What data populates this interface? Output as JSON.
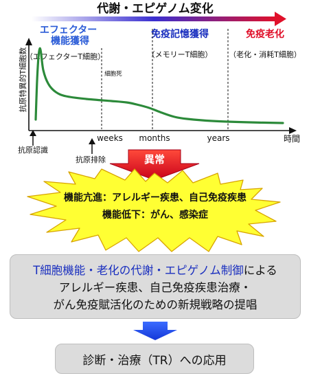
{
  "header": {
    "title": "代謝・エピゲノム変化",
    "colors": {
      "gradient_start": "#ffffff",
      "gradient_mid": "#3a2fd0",
      "gradient_end": "#e0102a"
    }
  },
  "phases": [
    {
      "title_lines": [
        "エフェクター",
        "機能獲得"
      ],
      "sublabel": "（エフェクターT細胞）",
      "color": "#2a5bd7"
    },
    {
      "title_lines": [
        "免疫記憶獲得"
      ],
      "sublabel": "（メモリーT細胞）",
      "color": "#1a2fbf"
    },
    {
      "title_lines": [
        "免疫老化"
      ],
      "sublabel": "（老化・消耗T細胞）",
      "color": "#e0102a"
    }
  ],
  "cell_death_label": "細胞死",
  "y_axis_label": "抗原特異的T細胞数",
  "x_axis": {
    "ticks": [
      "weeks",
      "months",
      "years"
    ],
    "end_label": "時間"
  },
  "events": {
    "antigen_recognition": "抗原認識",
    "antigen_elimination": "抗原排除"
  },
  "chart_data": {
    "type": "line",
    "series": [
      {
        "x": [
          0,
          0.5,
          1,
          1.5,
          2,
          3,
          5,
          8,
          12,
          20,
          30,
          36,
          40,
          45,
          50,
          55,
          60,
          70,
          85,
          98
        ],
        "y": [
          8,
          60,
          95,
          110,
          108,
          80,
          60,
          48,
          42,
          38,
          35,
          33,
          30,
          25,
          18,
          12,
          9,
          6,
          4,
          3
        ]
      }
    ]
  },
  "abnormal": {
    "label": "異常",
    "color": "#e0102a"
  },
  "burst": {
    "line1": "機能亢進：アレルギー疾患、自己免疫疾患",
    "line2": "機能低下：がん、感染症",
    "fill": "#ffff33"
  },
  "research_box": {
    "line1_blue": "T細胞機能・老化の代謝・エピゲノム制御",
    "line1_black": "による",
    "line2": "アレルギー疾患、自己免疫疾患治療・",
    "line3": "がん免疫賦活化のための新規戦略の提唱"
  },
  "application_box": {
    "label": "診断・治療（TR）への応用"
  },
  "down_arrow_color": "#1a3fe0"
}
